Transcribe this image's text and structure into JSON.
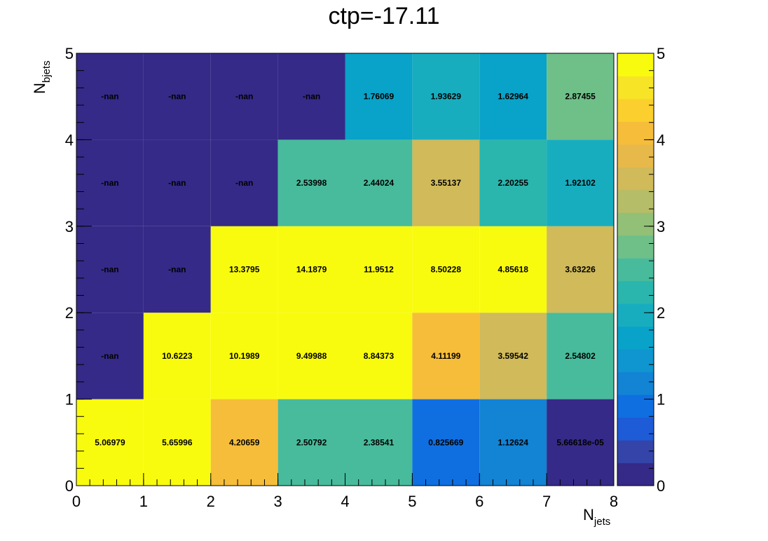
{
  "chart_data": {
    "type": "heatmap",
    "title": "ctp=-17.11",
    "xlabel": "N",
    "xlabel_sub": "jets",
    "ylabel": "N",
    "ylabel_sub": "bjets",
    "xlim": [
      0,
      8
    ],
    "ylim": [
      0,
      5
    ],
    "zlim": [
      0,
      5
    ],
    "x_ticks": [
      "0",
      "1",
      "2",
      "3",
      "4",
      "5",
      "6",
      "7",
      "8"
    ],
    "y_ticks": [
      "0",
      "1",
      "2",
      "3",
      "4",
      "5"
    ],
    "z_ticks": [
      "0",
      "1",
      "2",
      "3",
      "4",
      "5"
    ],
    "colorscale": [
      "#352a87",
      "#3444a8",
      "#1e5bd7",
      "#0f6fe0",
      "#1383d4",
      "#0f95cf",
      "#09a2c8",
      "#17adbf",
      "#2ab5ad",
      "#48bb9c",
      "#6fbf88",
      "#92c077",
      "#b5bd68",
      "#d0ba5a",
      "#e6b94a",
      "#f6bd3a",
      "#fbcf2e",
      "#f7e427",
      "#f9fb0e"
    ],
    "rows": [
      {
        "y": 0,
        "labels": [
          "5.06979",
          "5.65996",
          "4.20659",
          "2.50792",
          "2.38541",
          "0.825669",
          "1.12624",
          "5.66618e-05"
        ],
        "values": [
          5.06979,
          5.65996,
          4.20659,
          2.50792,
          2.38541,
          0.825669,
          1.12624,
          5.66618e-05
        ]
      },
      {
        "y": 1,
        "labels": [
          "-nan",
          "10.6223",
          "10.1989",
          "9.49988",
          "8.84373",
          "4.11199",
          "3.59542",
          "2.54802"
        ],
        "values": [
          null,
          10.6223,
          10.1989,
          9.49988,
          8.84373,
          4.11199,
          3.59542,
          2.54802
        ]
      },
      {
        "y": 2,
        "labels": [
          "-nan",
          "-nan",
          "13.3795",
          "14.1879",
          "11.9512",
          "8.50228",
          "4.85618",
          "3.63226"
        ],
        "values": [
          null,
          null,
          13.3795,
          14.1879,
          11.9512,
          8.50228,
          4.85618,
          3.63226
        ]
      },
      {
        "y": 3,
        "labels": [
          "-nan",
          "-nan",
          "-nan",
          "2.53998",
          "2.44024",
          "3.55137",
          "2.20255",
          "1.92102"
        ],
        "values": [
          null,
          null,
          null,
          2.53998,
          2.44024,
          3.55137,
          2.20255,
          1.92102
        ]
      },
      {
        "y": 4,
        "labels": [
          "-nan",
          "-nan",
          "-nan",
          "-nan",
          "1.76069",
          "1.93629",
          "1.62964",
          "2.87455"
        ],
        "values": [
          null,
          null,
          null,
          null,
          1.76069,
          1.93629,
          1.62964,
          2.87455
        ]
      }
    ]
  }
}
